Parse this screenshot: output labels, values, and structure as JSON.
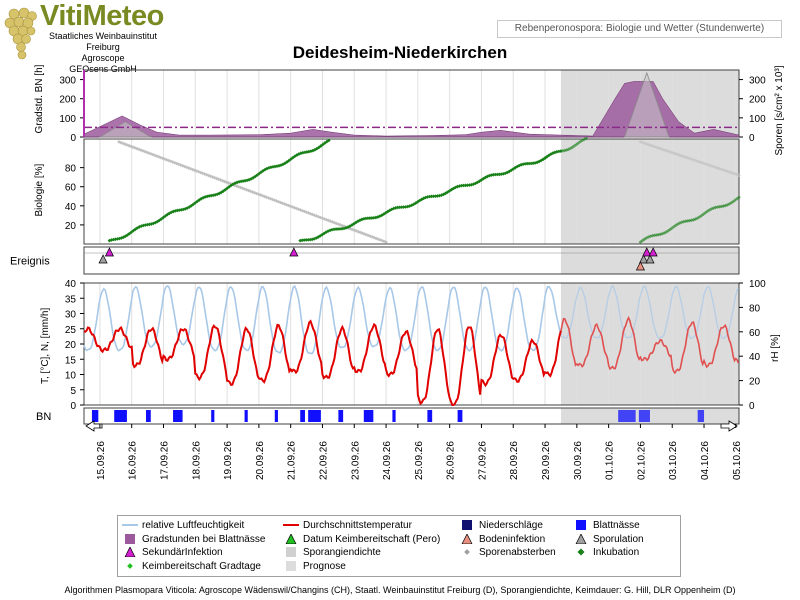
{
  "header": {
    "logo": "VitiMeteo",
    "institutions": [
      "Staatliches Weinbauinstitut Freiburg",
      "Agroscope",
      "GEOsens GmbH"
    ],
    "subtitle": "Rebenperonospora: Biologie und Wetter (Stundenwerte)",
    "title": "Deidesheim-Niederkirchen"
  },
  "footer": "Algorithmen Plasmopara Viticola: Agroscope Wädenswil/Changins (CH), Staatl. Weinbauinstitut Freiburg (D), Sporangiendichte, Keimdauer: G. Hill, DLR Oppenheim (D)",
  "colors": {
    "humidity": "#a8c8e8",
    "temperature": "#e00000",
    "precip": "#101070",
    "leafwet": "#1010ff",
    "degreehours": "#9c5a9c",
    "incubation": "#178017",
    "sporangia": "#c0c0c0",
    "prognosis_bg": "#dcdcdc",
    "threshold": "#8c2a8c"
  },
  "legend": [
    {
      "key": "rh",
      "label": "relative Luftfeuchtigkeit",
      "symbol": "line-lightblue"
    },
    {
      "key": "temp",
      "label": "Durchschnittstemperatur",
      "symbol": "line-red"
    },
    {
      "key": "precip",
      "label": "Niederschläge",
      "symbol": "square-navy"
    },
    {
      "key": "leafwet",
      "label": "Blattnässe",
      "symbol": "square-blue"
    },
    {
      "key": "degh",
      "label": "Gradstunden bei Blattnässe",
      "symbol": "square-purple"
    },
    {
      "key": "keim",
      "label": "Datum Keimbereitschaft (Pero)",
      "symbol": "triangle-green"
    },
    {
      "key": "boden",
      "label": "Bodeninfektion",
      "symbol": "triangle-salmon"
    },
    {
      "key": "spor",
      "label": "Sporulation",
      "symbol": "triangle-grey"
    },
    {
      "key": "sek",
      "label": "SekundärInfektion",
      "symbol": "triangle-magenta"
    },
    {
      "key": "spd",
      "label": "Sporangiendichte",
      "symbol": "square-lightgrey"
    },
    {
      "key": "spa",
      "label": "Sporenabsterben",
      "symbol": "diamond-grey"
    },
    {
      "key": "ink",
      "label": "Inkubation",
      "symbol": "diamond-green"
    },
    {
      "key": "kgt",
      "label": "Keimbereitschaft Gradtage",
      "symbol": "diamond-green-small"
    },
    {
      "key": "prog",
      "label": "Prognose",
      "symbol": "square-prognosis"
    }
  ],
  "chart_data": {
    "type": "line",
    "x_dates": [
      "15.09.26",
      "16.09.26",
      "17.09.26",
      "18.09.26",
      "19.09.26",
      "20.09.26",
      "21.09.26",
      "22.09.26",
      "23.09.26",
      "24.09.26",
      "25.09.26",
      "26.09.26",
      "27.09.26",
      "28.09.26",
      "29.09.26",
      "30.09.26",
      "01.10.26",
      "02.10.26",
      "03.10.26",
      "04.10.26",
      "05.10.26"
    ],
    "x_start": 14.5,
    "x_end": 35.1,
    "prognosis_start": 29.5,
    "panels": {
      "gradstd": {
        "ylabel": "Gradstd. BN [h]",
        "ylim": [
          0,
          350
        ],
        "yticks": [
          0,
          100,
          200,
          300
        ],
        "y2label": "Sporen [s/cm² x 10³]",
        "y2ticks": [
          0,
          100,
          200,
          300
        ],
        "threshold": 50,
        "degree_hours_profile": [
          [
            14.5,
            15
          ],
          [
            15.2,
            70
          ],
          [
            15.7,
            110
          ],
          [
            16.3,
            60
          ],
          [
            16.8,
            25
          ],
          [
            17.5,
            10
          ],
          [
            18.5,
            10
          ],
          [
            20,
            12
          ],
          [
            21,
            20
          ],
          [
            21.7,
            40
          ],
          [
            22.3,
            25
          ],
          [
            23,
            10
          ],
          [
            24,
            5
          ],
          [
            25.5,
            8
          ],
          [
            26.5,
            12
          ],
          [
            27,
            25
          ],
          [
            27.6,
            35
          ],
          [
            28.5,
            15
          ],
          [
            29.5,
            10
          ],
          [
            30.5,
            5
          ],
          [
            31.2,
            200
          ],
          [
            31.5,
            280
          ],
          [
            31.8,
            290
          ],
          [
            32.4,
            290
          ],
          [
            32.7,
            200
          ],
          [
            33.2,
            80
          ],
          [
            33.7,
            20
          ],
          [
            34.3,
            40
          ],
          [
            35.1,
            10
          ]
        ],
        "spore_triangles": [
          [
            15.0,
            16.6,
            15.8,
            80
          ],
          [
            31.5,
            32.9,
            32.2,
            335
          ]
        ]
      },
      "biologie": {
        "ylabel": "Biologie [%]",
        "ylim": [
          0,
          110
        ],
        "yticks": [
          20,
          40,
          60,
          80
        ],
        "incubation_series": [
          {
            "x0": 15.3,
            "x1": 22.2,
            "y0": 2,
            "y1": 107
          },
          {
            "x0": 21.3,
            "x1": 29.0,
            "y0": 2,
            "y1": 90
          },
          {
            "x0": 29.0,
            "x1": 30.3,
            "y0": 90,
            "y1": 109
          },
          {
            "x0": 32.0,
            "x1": 35.1,
            "y0": 2,
            "y1": 48
          }
        ],
        "sporangia_series": [
          {
            "x0": 15.6,
            "x1": 24.0,
            "y0": 107,
            "y1": 2
          },
          {
            "x0": 32.0,
            "x1": 35.1,
            "y0": 107,
            "y1": 72
          }
        ]
      },
      "ereignis": {
        "label": "Ereignis",
        "events": [
          {
            "x": 15.3,
            "type": "sekundaer",
            "row": 0
          },
          {
            "x": 15.1,
            "type": "sporulation",
            "row": 1
          },
          {
            "x": 21.1,
            "type": "sekundaer",
            "row": 0
          },
          {
            "x": 32.1,
            "type": "sporulation",
            "row": 1
          },
          {
            "x": 32.3,
            "type": "sporulation",
            "row": 1
          },
          {
            "x": 32.0,
            "type": "boden",
            "row": 2
          },
          {
            "x": 32.2,
            "type": "sekundaer",
            "row": 0
          },
          {
            "x": 32.4,
            "type": "sekundaer",
            "row": 0
          }
        ]
      },
      "wetter": {
        "ylabel": "T, [°C], N, [mm/h]",
        "ylim": [
          0,
          40
        ],
        "yticks": [
          0,
          5,
          10,
          15,
          20,
          25,
          30,
          35,
          40
        ],
        "y2label": "rH [%]",
        "y2ticks": [
          0,
          20,
          40,
          60,
          80,
          100
        ],
        "temp_min_by_day": [
          18,
          13,
          15,
          9,
          7,
          8,
          11,
          9,
          11,
          10,
          1,
          0,
          7,
          8,
          10,
          13,
          12,
          15,
          11,
          13,
          14
        ],
        "temp_max_by_day": [
          25,
          25,
          25,
          26,
          25,
          26,
          27,
          25,
          26,
          24,
          25,
          26,
          23,
          21,
          28,
          26,
          28,
          21,
          27,
          26,
          25
        ],
        "rh_min_by_day": [
          45,
          48,
          50,
          45,
          45,
          43,
          42,
          47,
          48,
          45,
          45,
          45,
          45,
          45,
          55,
          55,
          55,
          55,
          55,
          55,
          55
        ],
        "rh_max_by_day": [
          95,
          97,
          98,
          97,
          97,
          97,
          97,
          96,
          96,
          96,
          97,
          97,
          97,
          96,
          97,
          96,
          97,
          97,
          97,
          97,
          97
        ]
      },
      "bn": {
        "label": "BN",
        "blocks": [
          [
            14.75,
            14.95
          ],
          [
            15.45,
            15.85
          ],
          [
            16.45,
            16.6
          ],
          [
            17.3,
            17.6
          ],
          [
            18.5,
            18.6
          ],
          [
            19.55,
            19.65
          ],
          [
            20.5,
            20.6
          ],
          [
            21.3,
            21.45
          ],
          [
            21.55,
            21.95
          ],
          [
            22.5,
            22.65
          ],
          [
            23.3,
            23.6
          ],
          [
            24.2,
            24.3
          ],
          [
            25.3,
            25.45
          ],
          [
            26.25,
            26.4
          ],
          [
            31.3,
            31.85
          ],
          [
            31.95,
            32.3
          ],
          [
            33.8,
            34.0
          ]
        ]
      }
    }
  }
}
